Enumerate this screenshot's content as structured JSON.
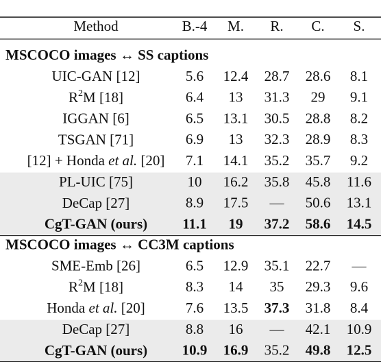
{
  "table": {
    "columns": [
      "Method",
      "B.-4",
      "M.",
      "R.",
      "C.",
      "S."
    ],
    "sections": [
      {
        "title": "MSCOCO images ↔ SS captions",
        "rows": [
          {
            "method": [
              {
                "text": "UIC-GAN [12]"
              }
            ],
            "cells": [
              5.6,
              12.4,
              28.7,
              28.6,
              8.1
            ]
          },
          {
            "method": [
              {
                "text": "R"
              },
              {
                "text": "2",
                "sup": true
              },
              {
                "text": "M [18]"
              }
            ],
            "cells": [
              6.4,
              13.0,
              31.3,
              29.0,
              9.1
            ]
          },
          {
            "method": [
              {
                "text": "IGGAN [6]"
              }
            ],
            "cells": [
              6.5,
              13.1,
              30.5,
              28.8,
              8.2
            ]
          },
          {
            "method": [
              {
                "text": "TSGAN [71]"
              }
            ],
            "cells": [
              6.9,
              13.0,
              32.3,
              28.9,
              8.3
            ]
          },
          {
            "method": [
              {
                "text": "[12] + Honda "
              },
              {
                "text": "et al.",
                "italic": true
              },
              {
                "text": " [20]"
              }
            ],
            "cells": [
              7.1,
              14.1,
              35.2,
              35.7,
              9.2
            ]
          },
          {
            "method": [
              {
                "text": "PL-UIC [75]"
              }
            ],
            "cells": [
              10.0,
              16.2,
              35.8,
              45.8,
              11.6
            ],
            "shaded": true
          },
          {
            "method": [
              {
                "text": "DeCap [27]"
              }
            ],
            "cells": [
              8.9,
              17.5,
              "—",
              50.6,
              13.1
            ],
            "shaded": true
          },
          {
            "method": [
              {
                "text": "CgT-GAN (ours)",
                "bold": true
              }
            ],
            "cells": [
              11.1,
              19.0,
              37.2,
              58.6,
              14.5
            ],
            "bold": [
              0,
              1,
              2,
              3,
              4
            ],
            "shaded": true
          }
        ]
      },
      {
        "title": "MSCOCO images ↔ CC3M captions",
        "rows": [
          {
            "method": [
              {
                "text": "SME-Emb [26]"
              }
            ],
            "cells": [
              6.5,
              12.9,
              35.1,
              22.7,
              "—"
            ]
          },
          {
            "method": [
              {
                "text": "R"
              },
              {
                "text": "2",
                "sup": true
              },
              {
                "text": "M [18]"
              }
            ],
            "cells": [
              8.3,
              14.0,
              35.0,
              29.3,
              9.6
            ]
          },
          {
            "method": [
              {
                "text": "Honda "
              },
              {
                "text": "et al.",
                "italic": true
              },
              {
                "text": " [20]"
              }
            ],
            "cells": [
              7.6,
              13.5,
              37.3,
              31.8,
              8.4
            ],
            "bold": [
              2
            ]
          },
          {
            "method": [
              {
                "text": "DeCap [27]"
              }
            ],
            "cells": [
              8.8,
              16.0,
              "—",
              42.1,
              10.9
            ],
            "shaded": true
          },
          {
            "method": [
              {
                "text": "CgT-GAN (ours)",
                "bold": true
              }
            ],
            "cells": [
              10.9,
              16.9,
              35.2,
              49.8,
              12.5
            ],
            "bold": [
              0,
              1,
              3,
              4
            ],
            "shaded": true
          }
        ]
      }
    ]
  }
}
